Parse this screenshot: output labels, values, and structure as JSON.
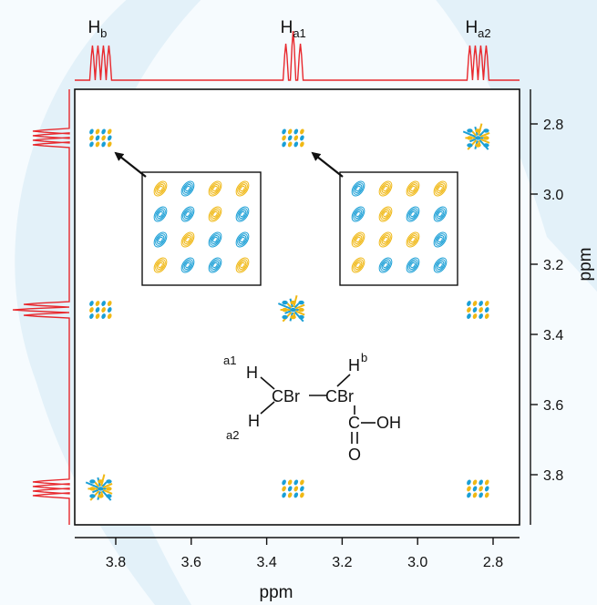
{
  "chart_data": {
    "type": "heatmap",
    "subtype": "2D NMR spectrum (COSY) with 1D projections",
    "xlabel": "ppm",
    "ylabel": "ppm",
    "xlim": [
      3.9,
      2.75
    ],
    "ylim": [
      2.75,
      3.92
    ],
    "x_reversed": true,
    "y_increases_downward": true,
    "xticks": [
      3.8,
      3.6,
      3.4,
      3.2,
      3.0,
      2.8
    ],
    "xtick_labels": [
      "3.8",
      "3.6",
      "3.4",
      "3.2",
      "3.0",
      "2.8"
    ],
    "yticks": [
      2.8,
      3.0,
      3.2,
      3.4,
      3.6,
      3.8
    ],
    "ytick_labels": [
      "2.8",
      "3.0",
      "3.2",
      "3.4",
      "3.6",
      "3.8"
    ],
    "resonances": [
      {
        "label_main": "H",
        "label_sub": "b",
        "shift_ppm": 3.84
      },
      {
        "label_main": "H",
        "label_sub": "a1",
        "shift_ppm": 3.33
      },
      {
        "label_main": "H",
        "label_sub": "a2",
        "shift_ppm": 2.84
      }
    ],
    "peaks": [
      {
        "x": 3.84,
        "y": 2.84,
        "kind": "cross"
      },
      {
        "x": 3.33,
        "y": 2.84,
        "kind": "cross"
      },
      {
        "x": 2.84,
        "y": 2.84,
        "kind": "diagonal"
      },
      {
        "x": 3.84,
        "y": 3.33,
        "kind": "cross"
      },
      {
        "x": 3.33,
        "y": 3.33,
        "kind": "diagonal"
      },
      {
        "x": 2.84,
        "y": 3.33,
        "kind": "cross"
      },
      {
        "x": 3.84,
        "y": 3.84,
        "kind": "diagonal"
      },
      {
        "x": 3.33,
        "y": 3.84,
        "kind": "cross"
      },
      {
        "x": 2.84,
        "y": 3.84,
        "kind": "cross"
      }
    ],
    "insets": [
      {
        "zoom_of_peak_at": [
          3.84,
          2.84
        ],
        "pattern": [
          "ybyy",
          "bbyb",
          "bybb",
          "ybby"
        ]
      },
      {
        "zoom_of_peak_at": [
          3.33,
          2.84
        ],
        "pattern": [
          "byyy",
          "bybb",
          "yyyb",
          "ybbb"
        ]
      }
    ],
    "molecule": {
      "left_group": "CBr",
      "right_group": "CBr",
      "h_symbol": "H",
      "label_a1": "a1",
      "label_a2": "a2",
      "label_b": "b",
      "carbonyl_c": "C",
      "hydroxyl": "OH",
      "carbonyl_o": "O"
    },
    "colors": {
      "positive_contour": "#1a9fd6",
      "negative_contour": "#f0b814",
      "projection_trace": "#e8282d",
      "background_arc": "#d9edf8"
    }
  }
}
